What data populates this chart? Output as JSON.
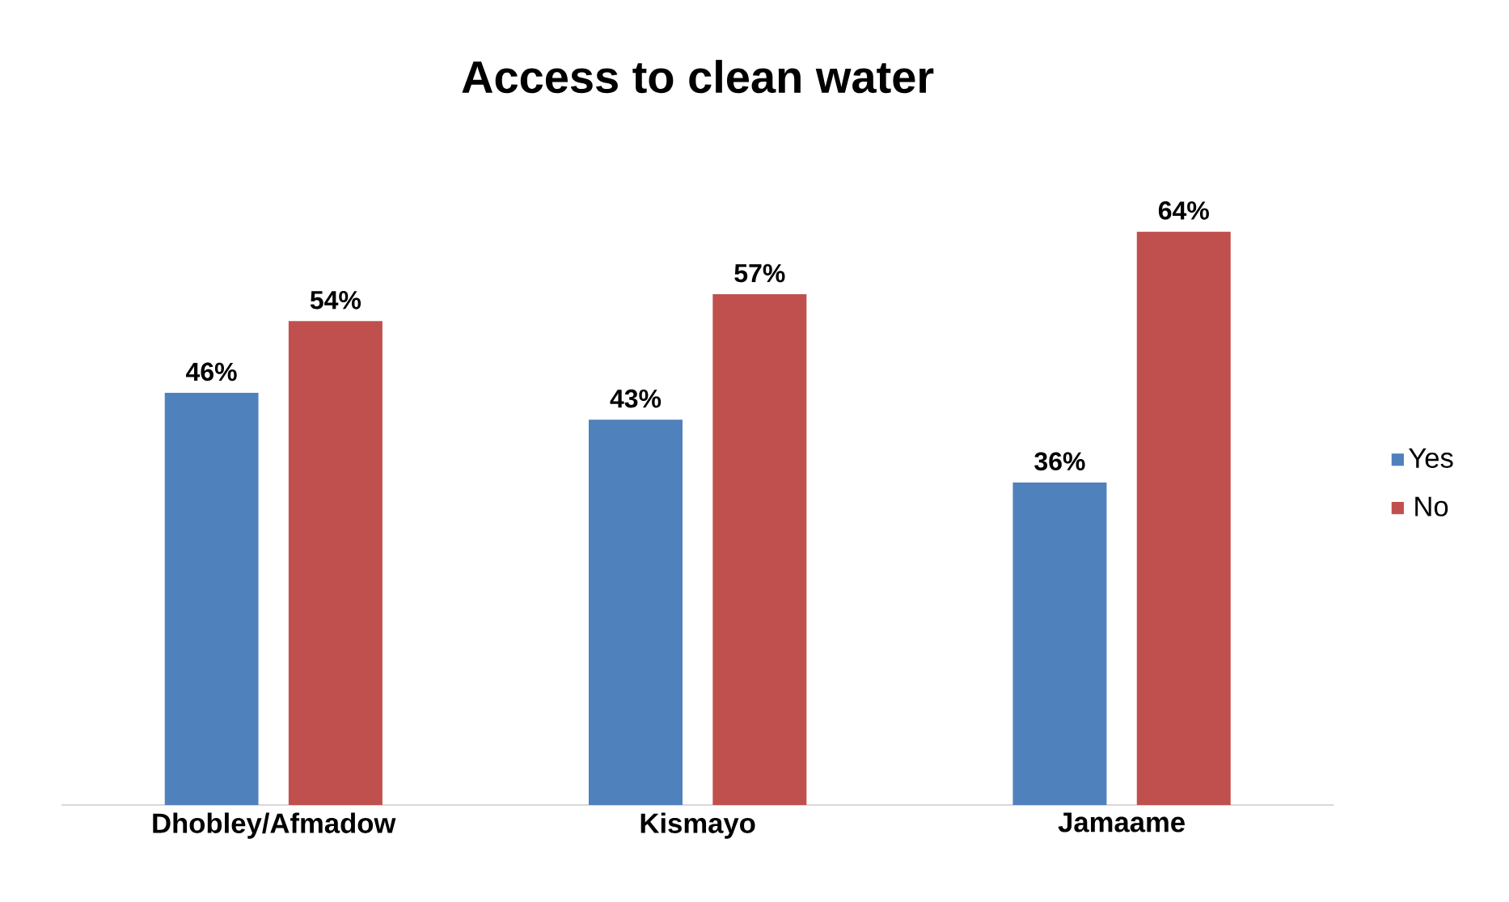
{
  "chart_data": {
    "type": "bar",
    "title": "Access to clean water",
    "categories": [
      "Dhobley/Afmadow",
      "Kismayo",
      "Jamaame"
    ],
    "series": [
      {
        "name": "Yes",
        "color": "#4f81bd",
        "values": [
          46,
          43,
          36
        ],
        "value_labels": [
          "46%",
          "43%",
          "36%"
        ]
      },
      {
        "name": "No",
        "color": "#c0504d",
        "values": [
          54,
          57,
          64
        ],
        "value_labels": [
          "54%",
          "57%",
          "64%"
        ]
      }
    ],
    "legend": "right"
  }
}
